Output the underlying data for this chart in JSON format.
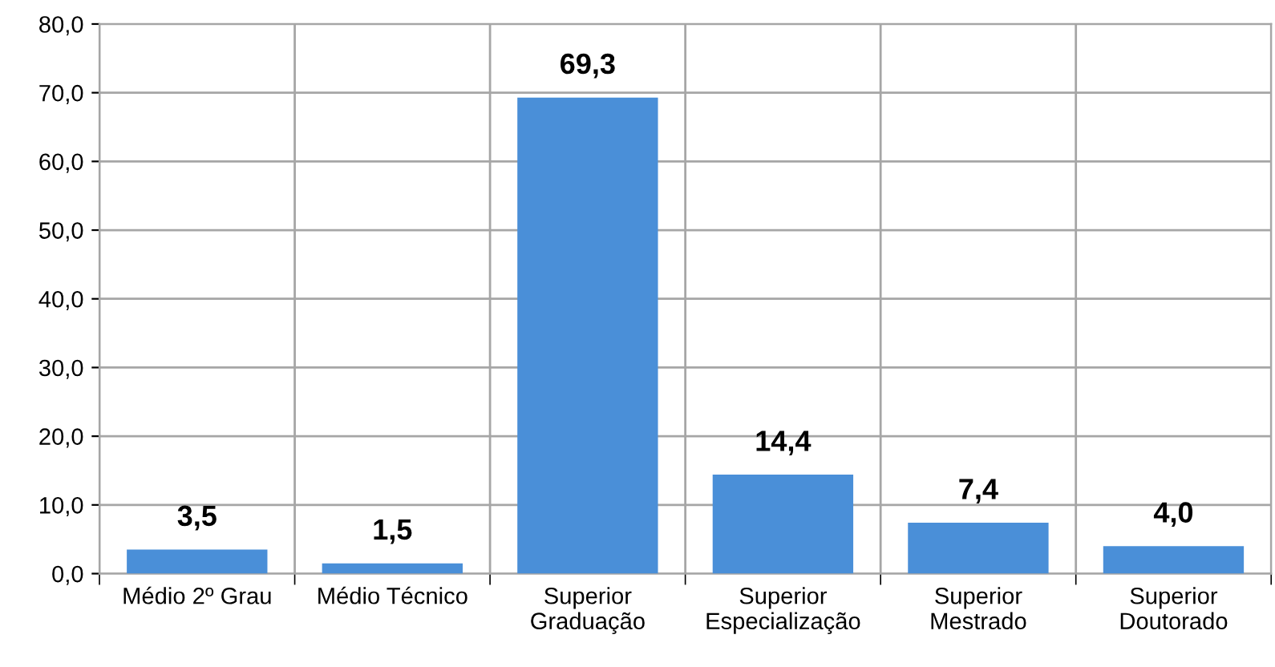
{
  "chart_data": {
    "type": "bar",
    "categories": [
      "Médio 2º Grau",
      "Médio Técnico",
      "Superior\nGraduação",
      "Superior\nEspecialização",
      "Superior\nMestrado",
      "Superior\nDoutorado"
    ],
    "values": [
      3.5,
      1.5,
      69.3,
      14.4,
      7.4,
      4.0
    ],
    "value_labels": [
      "3,5",
      "1,5",
      "69,3",
      "14,4",
      "7,4",
      "4,0"
    ],
    "color": "#4a8fd8",
    "ylim": [
      0,
      80
    ],
    "yticks": [
      {
        "value": 0,
        "label": "0,0"
      },
      {
        "value": 10,
        "label": "10,0"
      },
      {
        "value": 20,
        "label": "20,0"
      },
      {
        "value": 30,
        "label": "30,0"
      },
      {
        "value": 40,
        "label": "40,0"
      },
      {
        "value": 50,
        "label": "50,0"
      },
      {
        "value": 60,
        "label": "60,0"
      },
      {
        "value": 70,
        "label": "70,0"
      },
      {
        "value": 80,
        "label": "80,0"
      }
    ],
    "grid": true
  }
}
